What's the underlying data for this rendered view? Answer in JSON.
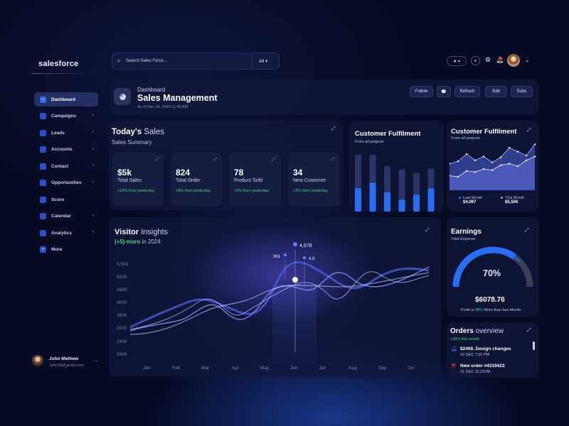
{
  "app": {
    "logo": "salesforce"
  },
  "sidebar": {
    "items": [
      {
        "label": "Dashboard",
        "active": true
      },
      {
        "label": "Campaigns"
      },
      {
        "label": "Leads"
      },
      {
        "label": "Accounts"
      },
      {
        "label": "Contact"
      },
      {
        "label": "Opportunities"
      },
      {
        "label": "Score"
      },
      {
        "label": "Calendar"
      },
      {
        "label": "Analytics"
      },
      {
        "label": "More"
      }
    ]
  },
  "user": {
    "name": "John Methew",
    "email": "John34@gmail.com",
    "menu": "..."
  },
  "topbar": {
    "search_placeholder": "Search Sales Force...",
    "filter_value": "All",
    "bookmark_label": "★ ▾",
    "add_label": "+"
  },
  "header": {
    "kicker": "Dashboard",
    "title": "Sales Management",
    "date": "As of Dec 14, 2024 11:45 AM",
    "buttons": {
      "follow": "Follow",
      "comment": "💬",
      "refresh": "Refresh",
      "edit": "Edit",
      "subs": "Subs"
    }
  },
  "todays_sales": {
    "title_bold": "Today's",
    "title_light": " Sales",
    "subtitle": "Sales Summary",
    "stats": [
      {
        "value": "$5k",
        "label": "Total Sales",
        "change": "+10% from yesterday"
      },
      {
        "value": "824",
        "label": "Total Order",
        "change": "+8% from yesterday"
      },
      {
        "value": "78",
        "label": "Product Sold",
        "change": "+2% from yesterday"
      },
      {
        "value": "34",
        "label": "New Customer",
        "change": "+3% from yesterday"
      }
    ]
  },
  "fulfilment_bars": {
    "title": "Customer Fulfilment",
    "subtitle": "From all projects",
    "chart_data": {
      "type": "bar",
      "series": [
        {
          "values": [
            1.0,
            1.0,
            0.8,
            0.74,
            0.68,
            0.76
          ]
        },
        {
          "values": [
            0.41,
            0.51,
            0.34,
            0.21,
            0.3,
            0.41
          ]
        }
      ],
      "colors": {
        "back": "#2a3466",
        "front": "#2a6df5"
      }
    }
  },
  "fulfilment_area": {
    "title": "Customer Fulfilment",
    "subtitle": "From all projects",
    "legend": [
      {
        "label": "Last Month",
        "value": "$4,087"
      },
      {
        "label": "This Month",
        "value": "$5,506"
      }
    ],
    "chart_data": {
      "type": "area",
      "series": [
        {
          "values": [
            0.55,
            0.6,
            0.75,
            0.62,
            0.7,
            0.58,
            0.68,
            0.88,
            0.8,
            0.72,
            0.95
          ]
        },
        {
          "values": [
            0.3,
            0.28,
            0.4,
            0.38,
            0.44,
            0.42,
            0.52,
            0.55,
            0.5,
            0.62,
            0.7
          ]
        }
      ]
    }
  },
  "visitor": {
    "title_bold": "Visitor",
    "title_light": " Insights",
    "sub_green": "(+5) more",
    "sub_rest": " in 2024",
    "tooltips": {
      "main": "4,678",
      "left": "981",
      "right": "4,9"
    },
    "chart_data": {
      "type": "line",
      "x": [
        "Jan",
        "Feb",
        "Mar",
        "Apr",
        "May",
        "Jun",
        "Jul",
        "Aug",
        "Sep",
        "Oct"
      ],
      "yticks": [
        "5,500",
        "5000",
        "4500",
        "4000",
        "3500",
        "3000",
        "2500",
        "2000"
      ],
      "ylim": [
        2000,
        5500
      ]
    }
  },
  "earnings": {
    "title": "Earnings",
    "subtitle": "Total Expense",
    "percent": "70%",
    "percent_value": 0.7,
    "amount": "$6078.76",
    "note_prefix": "Profit is ",
    "note_green": "48%",
    "note_suffix": " More than last Month"
  },
  "orders": {
    "title_bold": "Orders",
    "title_light": " overview",
    "subtitle": "+30% this month",
    "items": [
      {
        "title": "$2400, Design changes",
        "date": "22 DEC 7:20 PM"
      },
      {
        "title": "New order #4219423",
        "date": "21 DEC 11:21PM"
      }
    ]
  },
  "colors": {
    "accent": "#2a6df5",
    "positive": "#3ddc84",
    "bg": "#060a22"
  }
}
